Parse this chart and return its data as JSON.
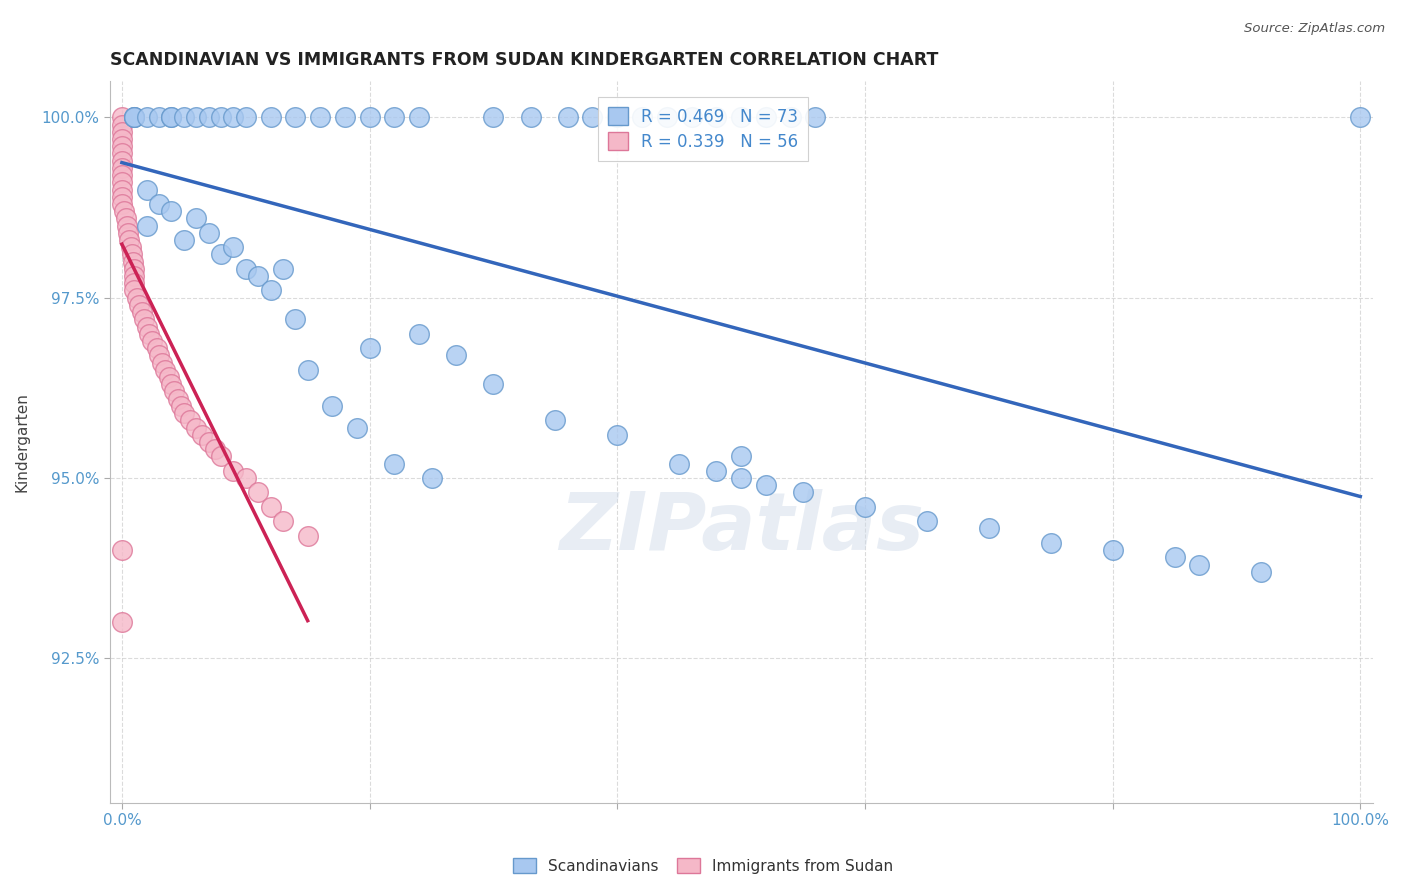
{
  "title": "SCANDINAVIAN VS IMMIGRANTS FROM SUDAN KINDERGARTEN CORRELATION CHART",
  "source": "Source: ZipAtlas.com",
  "ylabel": "Kindergarten",
  "xlim": [
    -0.01,
    1.01
  ],
  "ylim": [
    0.905,
    1.005
  ],
  "yticks": [
    0.925,
    0.95,
    0.975,
    1.0
  ],
  "ytick_labels": [
    "92.5%",
    "95.0%",
    "97.5%",
    "100.0%"
  ],
  "xticks": [
    0.0,
    0.2,
    0.4,
    0.6,
    0.8,
    1.0
  ],
  "blue_R": 0.469,
  "blue_N": 73,
  "pink_R": 0.339,
  "pink_N": 56,
  "blue_color": "#a8c8f0",
  "pink_color": "#f5b8c8",
  "blue_edge": "#6699cc",
  "pink_edge": "#dd7799",
  "trend_blue": "#3366bb",
  "trend_pink": "#cc2255",
  "legend_label_blue": "Scandinavians",
  "legend_label_pink": "Immigrants from Sudan",
  "watermark_text": "ZIPatlas",
  "blue_x": [
    0.02,
    0.02,
    0.03,
    0.04,
    0.05,
    0.06,
    0.07,
    0.08,
    0.09,
    0.1,
    0.11,
    0.12,
    0.14,
    0.15,
    0.17,
    0.19,
    0.22,
    0.25,
    0.27,
    0.3,
    0.35,
    0.4,
    0.45,
    0.48,
    0.5,
    0.5,
    0.52,
    0.55,
    0.6,
    0.65,
    0.7,
    0.75,
    0.8,
    0.85,
    0.87,
    0.92,
    1.0,
    0.01,
    0.01,
    0.01,
    0.02,
    0.03,
    0.04,
    0.04,
    0.05,
    0.06,
    0.07,
    0.08,
    0.09,
    0.1,
    0.12,
    0.14,
    0.16,
    0.18,
    0.2,
    0.22,
    0.24,
    0.3,
    0.33,
    0.36,
    0.38,
    0.4,
    0.42,
    0.44,
    0.46,
    0.48,
    0.5,
    0.52,
    0.54,
    0.56,
    0.13,
    0.2,
    0.24
  ],
  "blue_y": [
    0.99,
    0.985,
    0.988,
    0.987,
    0.983,
    0.986,
    0.984,
    0.981,
    0.982,
    0.979,
    0.978,
    0.976,
    0.972,
    0.965,
    0.96,
    0.957,
    0.952,
    0.95,
    0.967,
    0.963,
    0.958,
    0.956,
    0.952,
    0.951,
    0.95,
    0.953,
    0.949,
    0.948,
    0.946,
    0.944,
    0.943,
    0.941,
    0.94,
    0.939,
    0.938,
    0.937,
    1.0,
    1.0,
    1.0,
    1.0,
    1.0,
    1.0,
    1.0,
    1.0,
    1.0,
    1.0,
    1.0,
    1.0,
    1.0,
    1.0,
    1.0,
    1.0,
    1.0,
    1.0,
    1.0,
    1.0,
    1.0,
    1.0,
    1.0,
    1.0,
    1.0,
    1.0,
    1.0,
    1.0,
    1.0,
    1.0,
    1.0,
    1.0,
    1.0,
    1.0,
    0.979,
    0.968,
    0.97
  ],
  "pink_x": [
    0.0,
    0.0,
    0.0,
    0.0,
    0.0,
    0.0,
    0.0,
    0.0,
    0.0,
    0.0,
    0.0,
    0.0,
    0.0,
    0.002,
    0.003,
    0.004,
    0.005,
    0.006,
    0.007,
    0.008,
    0.009,
    0.01,
    0.01,
    0.01,
    0.01,
    0.012,
    0.014,
    0.016,
    0.018,
    0.02,
    0.022,
    0.024,
    0.028,
    0.03,
    0.032,
    0.035,
    0.038,
    0.04,
    0.042,
    0.045,
    0.048,
    0.05,
    0.055,
    0.06,
    0.065,
    0.07,
    0.075,
    0.08,
    0.09,
    0.1,
    0.11,
    0.12,
    0.13,
    0.15,
    0.0,
    0.0
  ],
  "pink_y": [
    1.0,
    0.999,
    0.998,
    0.997,
    0.996,
    0.995,
    0.994,
    0.993,
    0.992,
    0.991,
    0.99,
    0.989,
    0.988,
    0.987,
    0.986,
    0.985,
    0.984,
    0.983,
    0.982,
    0.981,
    0.98,
    0.979,
    0.978,
    0.977,
    0.976,
    0.975,
    0.974,
    0.973,
    0.972,
    0.971,
    0.97,
    0.969,
    0.968,
    0.967,
    0.966,
    0.965,
    0.964,
    0.963,
    0.962,
    0.961,
    0.96,
    0.959,
    0.958,
    0.957,
    0.956,
    0.955,
    0.954,
    0.953,
    0.951,
    0.95,
    0.948,
    0.946,
    0.944,
    0.942,
    0.94,
    0.93
  ]
}
